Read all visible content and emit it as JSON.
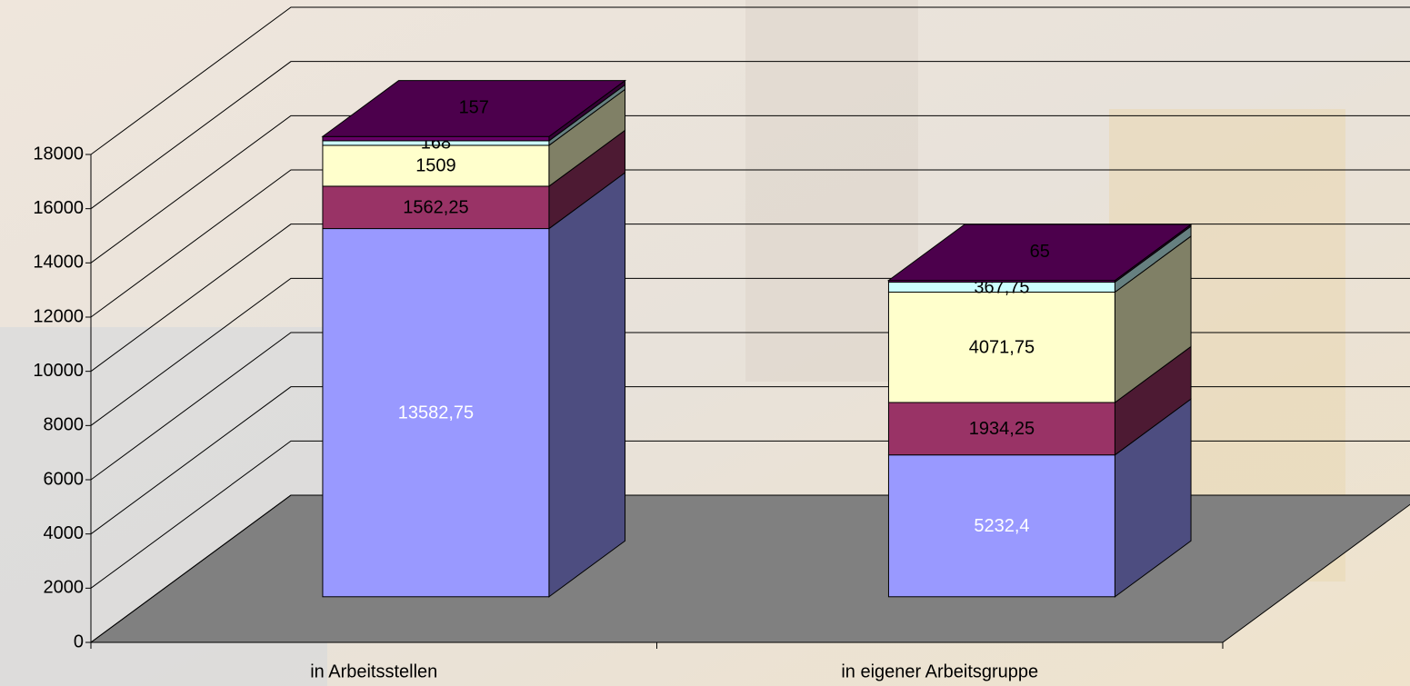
{
  "chart_data": {
    "type": "bar3d_stacked",
    "categories": [
      "in Arbeitsstellen",
      "in eigener Arbeitsgruppe"
    ],
    "series": [
      {
        "color": "#9999ff",
        "side_color": "#4d4d80",
        "label_color": "#ffffff",
        "values": [
          13582.75,
          5232.4
        ],
        "value_labels": [
          "13582,75",
          "5232,4"
        ]
      },
      {
        "color": "#993366",
        "side_color": "#4d1a33",
        "label_color": "#000000",
        "values": [
          1562.25,
          1934.25
        ],
        "value_labels": [
          "1562,25",
          "1934,25"
        ]
      },
      {
        "color": "#ffffcc",
        "side_color": "#808066",
        "label_color": "#000000",
        "values": [
          1509,
          4071.75
        ],
        "value_labels": [
          "1509",
          "4071,75"
        ]
      },
      {
        "color": "#ccffff",
        "side_color": "#668080",
        "label_color": "#000000",
        "values": [
          168,
          367.75
        ],
        "value_labels": [
          "168",
          "367,75"
        ]
      },
      {
        "color": "#660066",
        "side_color": "#330033",
        "label_color": "#000000",
        "values": [
          157,
          65
        ]
      }
    ],
    "ylim": [
      0,
      18000
    ],
    "yticks": [
      0,
      2000,
      4000,
      6000,
      8000,
      10000,
      12000,
      14000,
      16000,
      18000
    ],
    "grid": true
  }
}
